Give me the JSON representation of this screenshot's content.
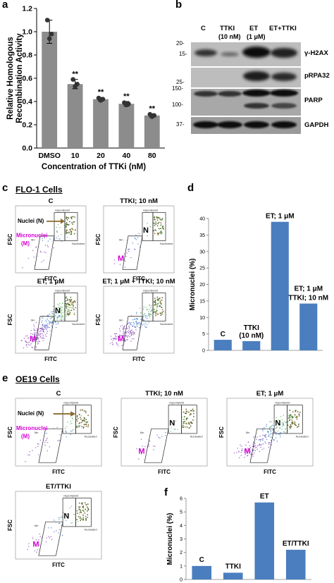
{
  "panels": {
    "a": {
      "letter": "a",
      "chart_data": {
        "type": "bar",
        "categories": [
          "DMSO",
          "10",
          "20",
          "40",
          "80"
        ],
        "values": [
          1.0,
          0.55,
          0.42,
          0.38,
          0.28
        ],
        "errors": [
          0.1,
          0.04,
          0.015,
          0.02,
          0.015
        ],
        "points": [
          [
            1.1,
            0.98,
            0.94
          ],
          [
            0.59,
            0.55,
            0.53
          ],
          [
            0.43,
            0.42,
            0.41
          ],
          [
            0.39,
            0.38,
            0.37
          ],
          [
            0.29,
            0.28,
            0.27
          ]
        ],
        "significance": [
          "",
          "**",
          "**",
          "**",
          "**"
        ],
        "ylabel": "Relative Homologous Recombination Activity",
        "xlabel": "Concentration of TTKi (nM)",
        "ylim": [
          0,
          1.2
        ],
        "yticks": [
          "0.0",
          "0.2",
          "0.4",
          "0.6",
          "0.8",
          "1.0",
          "1.2"
        ],
        "bar_color": "#8c8c8c"
      }
    },
    "b": {
      "letter": "b",
      "lanes": [
        "C",
        "TTKI",
        "ET",
        "ET+TTKI"
      ],
      "lane_doses": [
        "",
        "(10 nM)",
        "(1 μM)",
        ""
      ],
      "mw_markers": [
        "20-",
        "15-",
        "25-",
        "150-",
        "100-",
        "37-"
      ],
      "proteins": [
        "γ-H2AX",
        "pRPA32",
        "PARP",
        "GAPDH"
      ]
    },
    "c": {
      "letter": "c",
      "cell_line": "FLO-1 Cells",
      "plots": [
        {
          "title": "C"
        },
        {
          "title": "TTKI; 10 nM"
        },
        {
          "title": "ET; 1 μM"
        },
        {
          "title": "ET; 1 μM + TTKI; 10 nM"
        }
      ],
      "x_axis": "FITC",
      "y_axis": "FSC",
      "nuclei_label": "Nuclei (N)",
      "micronuclei_label": "Micronuclei",
      "micronuclei_sub": "(M)",
      "n_marker": "N",
      "m_marker": "M",
      "gate_hypo": "Hypodiploid",
      "gate_nuc": "Nucleated",
      "gate_mn": "Mn"
    },
    "d": {
      "letter": "d",
      "chart_data": {
        "type": "bar",
        "categories": [
          "C",
          "TTKI (10 nM)",
          "ET; 1 μM",
          "ET; 1 μM TTKI; 10 nM"
        ],
        "values": [
          3.2,
          2.8,
          39,
          14.2
        ],
        "ylabel": "Micronuclei (%)",
        "ylim": [
          0,
          40
        ],
        "yticks": [
          "0",
          "5",
          "10",
          "15",
          "20",
          "25",
          "30",
          "35",
          "40"
        ],
        "bar_color": "#4a7ebf"
      },
      "labels": {
        "c": "C",
        "ttki_1": "TTKI",
        "ttki_2": "(10 nM)",
        "et": "ET; 1 μM",
        "combo_1": "ET; 1 μM",
        "combo_2": "TTKI; 10 nM"
      }
    },
    "e": {
      "letter": "e",
      "cell_line": "OE19 Cells",
      "plots": [
        {
          "title": "C"
        },
        {
          "title": "TTKI; 10 nM"
        },
        {
          "title": "ET; 1 μM"
        },
        {
          "title": "ET/TTKI"
        }
      ],
      "x_axis": "FITC",
      "y_axis": "FSC",
      "nuclei_label": "Nuclei (N)",
      "micronuclei_label": "Micronuclei",
      "micronuclei_sub": "(M)",
      "n_marker": "N",
      "m_marker": "M",
      "gate_hypo": "Hypodiploid",
      "gate_nuc": "Nucleated",
      "gate_mn": "Mn"
    },
    "f": {
      "letter": "f",
      "chart_data": {
        "type": "bar",
        "categories": [
          "C",
          "TTKI",
          "ET",
          "ET/TTKI"
        ],
        "values": [
          1.0,
          0.5,
          5.7,
          2.2
        ],
        "ylabel": "Micronuclei (%)",
        "ylim": [
          0,
          6
        ],
        "yticks": [
          "0",
          "1",
          "2",
          "3",
          "4",
          "5",
          "6"
        ],
        "bar_color": "#4a7ebf"
      }
    }
  }
}
